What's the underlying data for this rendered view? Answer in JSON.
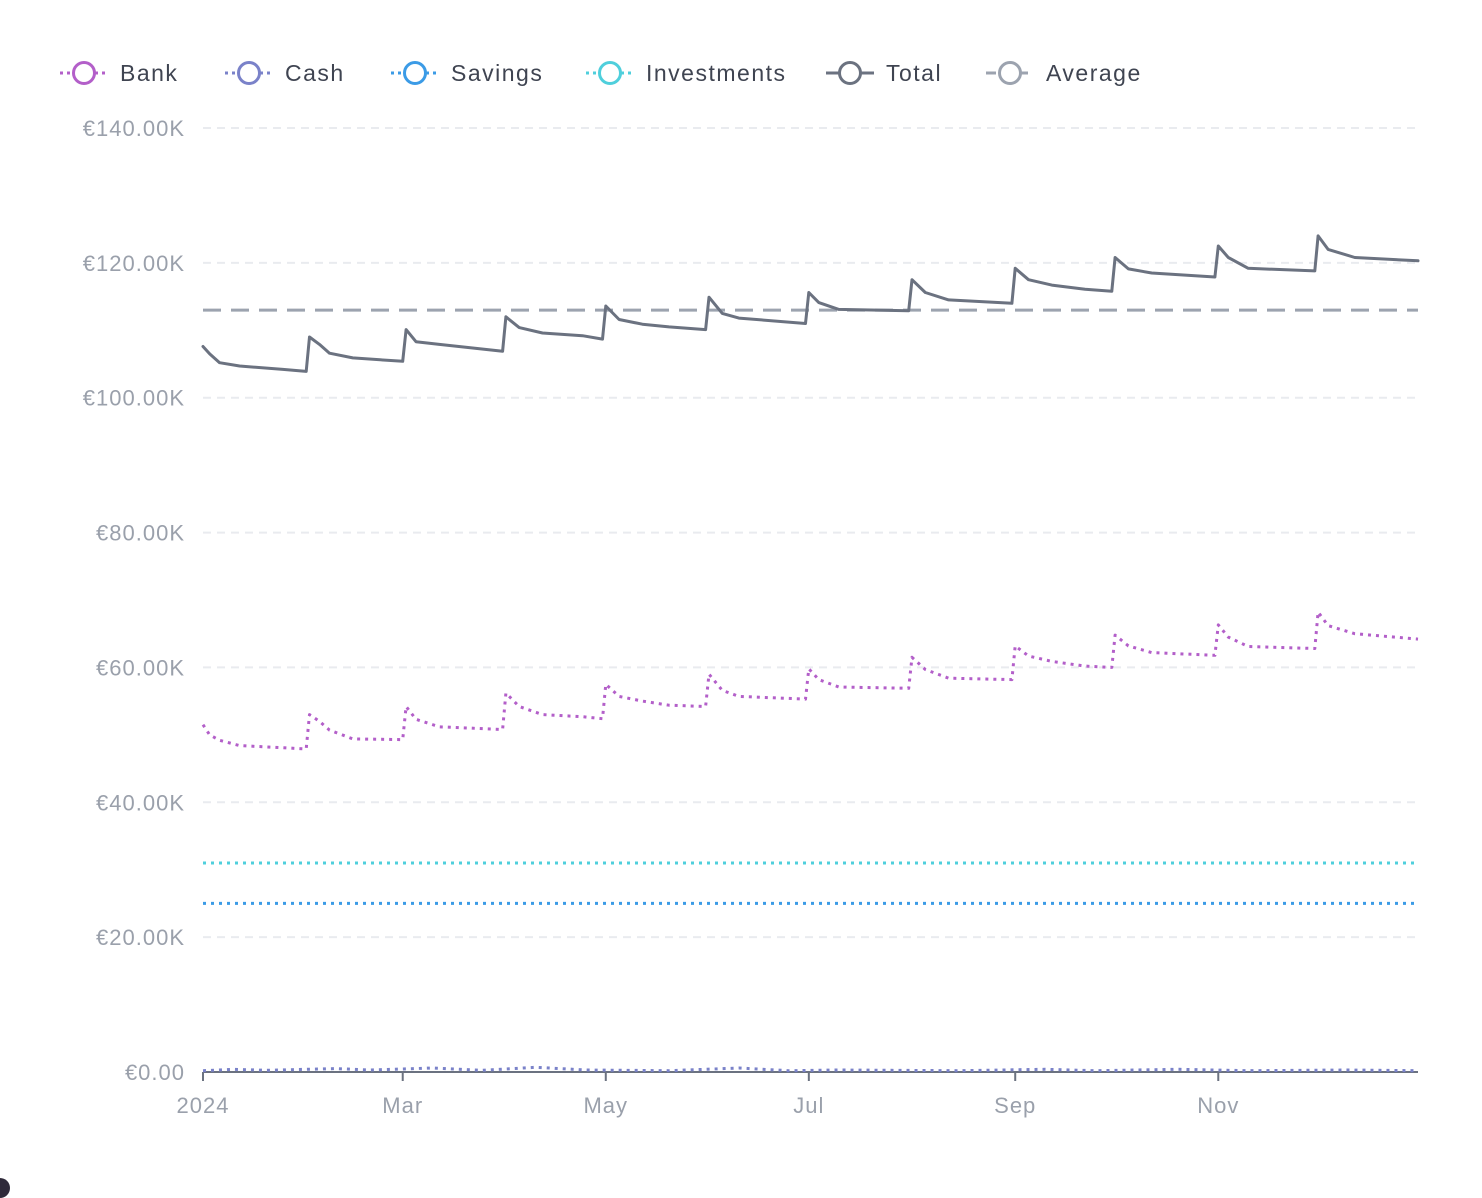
{
  "chart_data": {
    "type": "line",
    "legend": {
      "placement": "top-left",
      "items": [
        {
          "key": "bank",
          "label": "Bank",
          "color": "#b35fc9",
          "style": "dotted"
        },
        {
          "key": "cash",
          "label": "Cash",
          "color": "#7a82c9",
          "style": "dotted"
        },
        {
          "key": "savings",
          "label": "Savings",
          "color": "#3b9be6",
          "style": "dotted"
        },
        {
          "key": "investments",
          "label": "Investments",
          "color": "#4fcfdc",
          "style": "dotted"
        },
        {
          "key": "total",
          "label": "Total",
          "color": "#6b7280",
          "style": "solid"
        },
        {
          "key": "average",
          "label": "Average",
          "color": "#9ca3af",
          "style": "dashed"
        }
      ]
    },
    "y_axis": {
      "min": 0,
      "max": 140000,
      "ticks": [
        {
          "value": 0,
          "label": "€0.00"
        },
        {
          "value": 20000,
          "label": "€20.00K"
        },
        {
          "value": 40000,
          "label": "€40.00K"
        },
        {
          "value": 60000,
          "label": "€60.00K"
        },
        {
          "value": 80000,
          "label": "€80.00K"
        },
        {
          "value": 100000,
          "label": "€100.00K"
        },
        {
          "value": 120000,
          "label": "€120.00K"
        },
        {
          "value": 140000,
          "label": "€140.00K"
        }
      ],
      "grid": true
    },
    "x_axis": {
      "min": "2024-01-01",
      "max": "2024-12-31",
      "ticks": [
        {
          "date": "2024-01-01",
          "label": "2024"
        },
        {
          "date": "2024-03-01",
          "label": "Mar"
        },
        {
          "date": "2024-05-01",
          "label": "May"
        },
        {
          "date": "2024-07-01",
          "label": "Jul"
        },
        {
          "date": "2024-09-01",
          "label": "Sep"
        },
        {
          "date": "2024-11-01",
          "label": "Nov"
        }
      ]
    },
    "series": [
      {
        "key": "bank",
        "name": "Bank",
        "points": [
          [
            "2024-01-01",
            51500
          ],
          [
            "2024-01-03",
            50000
          ],
          [
            "2024-01-06",
            49200
          ],
          [
            "2024-01-12",
            48400
          ],
          [
            "2024-01-25",
            48100
          ],
          [
            "2024-02-01",
            47900
          ],
          [
            "2024-02-02",
            53000
          ],
          [
            "2024-02-05",
            52000
          ],
          [
            "2024-02-08",
            50700
          ],
          [
            "2024-02-15",
            49400
          ],
          [
            "2024-03-01",
            49300
          ],
          [
            "2024-03-02",
            54200
          ],
          [
            "2024-03-05",
            52300
          ],
          [
            "2024-03-12",
            51200
          ],
          [
            "2024-03-31",
            50800
          ],
          [
            "2024-04-01",
            56200
          ],
          [
            "2024-04-05",
            54200
          ],
          [
            "2024-04-12",
            53000
          ],
          [
            "2024-04-24",
            52700
          ],
          [
            "2024-04-30",
            52400
          ],
          [
            "2024-05-01",
            57500
          ],
          [
            "2024-05-05",
            55700
          ],
          [
            "2024-05-12",
            55000
          ],
          [
            "2024-05-20",
            54400
          ],
          [
            "2024-05-31",
            54200
          ],
          [
            "2024-06-01",
            59000
          ],
          [
            "2024-06-05",
            56600
          ],
          [
            "2024-06-10",
            55700
          ],
          [
            "2024-06-30",
            55300
          ],
          [
            "2024-07-01",
            59800
          ],
          [
            "2024-07-04",
            58200
          ],
          [
            "2024-07-10",
            57100
          ],
          [
            "2024-07-31",
            56900
          ],
          [
            "2024-08-01",
            61500
          ],
          [
            "2024-08-05",
            59700
          ],
          [
            "2024-08-12",
            58400
          ],
          [
            "2024-08-31",
            58200
          ],
          [
            "2024-09-01",
            63200
          ],
          [
            "2024-09-05",
            61700
          ],
          [
            "2024-09-12",
            60900
          ],
          [
            "2024-09-22",
            60200
          ],
          [
            "2024-09-30",
            60000
          ],
          [
            "2024-10-01",
            64800
          ],
          [
            "2024-10-05",
            63200
          ],
          [
            "2024-10-12",
            62200
          ],
          [
            "2024-10-31",
            61800
          ],
          [
            "2024-11-01",
            66300
          ],
          [
            "2024-11-04",
            64500
          ],
          [
            "2024-11-10",
            63100
          ],
          [
            "2024-11-30",
            62800
          ],
          [
            "2024-12-01",
            68200
          ],
          [
            "2024-12-04",
            66200
          ],
          [
            "2024-12-12",
            65000
          ],
          [
            "2024-12-31",
            64200
          ]
        ]
      },
      {
        "key": "cash",
        "name": "Cash",
        "points": [
          [
            "2024-01-01",
            200
          ],
          [
            "2024-01-10",
            400
          ],
          [
            "2024-01-20",
            250
          ],
          [
            "2024-02-10",
            500
          ],
          [
            "2024-02-20",
            300
          ],
          [
            "2024-03-10",
            600
          ],
          [
            "2024-03-25",
            250
          ],
          [
            "2024-04-10",
            700
          ],
          [
            "2024-04-25",
            300
          ],
          [
            "2024-05-20",
            200
          ],
          [
            "2024-06-10",
            600
          ],
          [
            "2024-06-25",
            200
          ],
          [
            "2024-07-10",
            300
          ],
          [
            "2024-08-15",
            200
          ],
          [
            "2024-09-10",
            400
          ],
          [
            "2024-09-25",
            200
          ],
          [
            "2024-10-20",
            400
          ],
          [
            "2024-11-10",
            200
          ],
          [
            "2024-12-10",
            300
          ],
          [
            "2024-12-31",
            200
          ]
        ]
      },
      {
        "key": "savings",
        "name": "Savings",
        "points": [
          [
            "2024-01-01",
            25000
          ],
          [
            "2024-12-31",
            25000
          ]
        ]
      },
      {
        "key": "investments",
        "name": "Investments",
        "points": [
          [
            "2024-01-01",
            31000
          ],
          [
            "2024-12-31",
            31000
          ]
        ]
      },
      {
        "key": "total",
        "name": "Total",
        "points": [
          [
            "2024-01-01",
            107600
          ],
          [
            "2024-01-03",
            106500
          ],
          [
            "2024-01-06",
            105200
          ],
          [
            "2024-01-12",
            104700
          ],
          [
            "2024-01-25",
            104200
          ],
          [
            "2024-02-01",
            103900
          ],
          [
            "2024-02-02",
            109000
          ],
          [
            "2024-02-05",
            107900
          ],
          [
            "2024-02-08",
            106600
          ],
          [
            "2024-02-15",
            105900
          ],
          [
            "2024-03-01",
            105400
          ],
          [
            "2024-03-02",
            110100
          ],
          [
            "2024-03-05",
            108300
          ],
          [
            "2024-03-12",
            107900
          ],
          [
            "2024-03-31",
            106900
          ],
          [
            "2024-04-01",
            112000
          ],
          [
            "2024-04-05",
            110400
          ],
          [
            "2024-04-12",
            109600
          ],
          [
            "2024-04-24",
            109200
          ],
          [
            "2024-04-30",
            108700
          ],
          [
            "2024-05-01",
            113600
          ],
          [
            "2024-05-05",
            111600
          ],
          [
            "2024-05-12",
            110900
          ],
          [
            "2024-05-20",
            110500
          ],
          [
            "2024-05-31",
            110100
          ],
          [
            "2024-06-01",
            114900
          ],
          [
            "2024-06-05",
            112500
          ],
          [
            "2024-06-10",
            111800
          ],
          [
            "2024-06-30",
            111000
          ],
          [
            "2024-07-01",
            115600
          ],
          [
            "2024-07-04",
            114100
          ],
          [
            "2024-07-10",
            113100
          ],
          [
            "2024-07-31",
            112900
          ],
          [
            "2024-08-01",
            117500
          ],
          [
            "2024-08-05",
            115600
          ],
          [
            "2024-08-12",
            114500
          ],
          [
            "2024-08-31",
            114000
          ],
          [
            "2024-09-01",
            119200
          ],
          [
            "2024-09-05",
            117500
          ],
          [
            "2024-09-12",
            116700
          ],
          [
            "2024-09-22",
            116100
          ],
          [
            "2024-09-30",
            115800
          ],
          [
            "2024-10-01",
            120800
          ],
          [
            "2024-10-05",
            119100
          ],
          [
            "2024-10-12",
            118500
          ],
          [
            "2024-10-31",
            117900
          ],
          [
            "2024-11-01",
            122500
          ],
          [
            "2024-11-04",
            120800
          ],
          [
            "2024-11-10",
            119200
          ],
          [
            "2024-11-30",
            118800
          ],
          [
            "2024-12-01",
            124000
          ],
          [
            "2024-12-04",
            122000
          ],
          [
            "2024-12-12",
            120800
          ],
          [
            "2024-12-31",
            120300
          ]
        ]
      },
      {
        "key": "average",
        "name": "Average",
        "points": [
          [
            "2024-01-01",
            113000
          ],
          [
            "2024-12-31",
            113000
          ]
        ]
      }
    ]
  }
}
